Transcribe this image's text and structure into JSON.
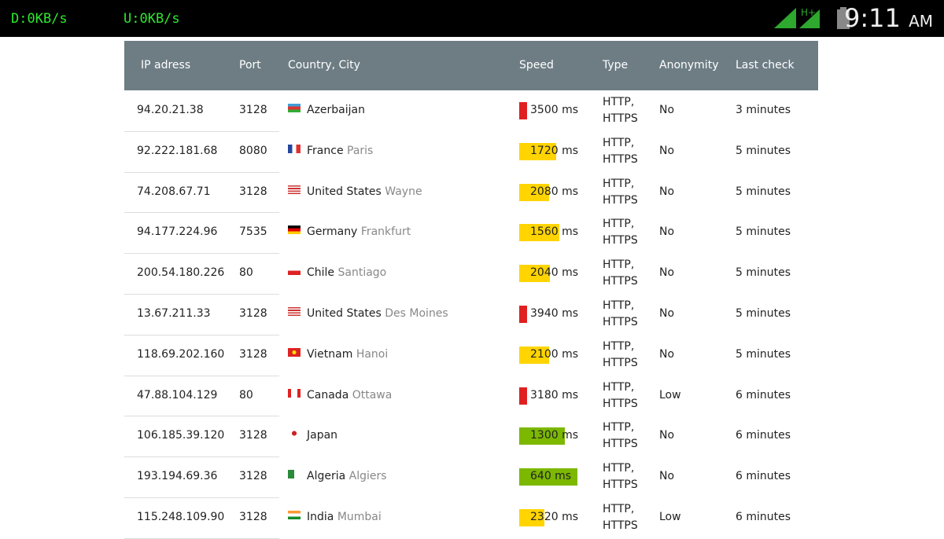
{
  "status_bar": {
    "download": "D:0KB/s",
    "upload": "U:0KB/s",
    "time": "9:11",
    "ampm": "AM"
  },
  "table": {
    "headers": [
      "IP adress",
      "Port",
      "Country, City",
      "Speed",
      "Type",
      "Anonymity",
      "Last check"
    ],
    "rows": [
      {
        "ip": "94.20.21.38",
        "port": 3128,
        "country": "Azerbaijan",
        "speed": {
          "value": 3500,
          "label": "3500 ms"
        },
        "type": "HTTP, HTTPS",
        "anonymity": "No",
        "last_check": "3 minutes"
      },
      {
        "ip": "92.222.181.68",
        "port": 8080,
        "country": "France",
        "city": "Paris",
        "speed": {
          "value": 1720,
          "label": "1720 ms"
        },
        "type": "HTTP, HTTPS",
        "anonymity": "No",
        "last_check": "5 minutes"
      },
      {
        "ip": "74.208.67.71",
        "port": 3128,
        "country": "United States",
        "city": "Wayne",
        "speed": {
          "value": 2080,
          "label": "2080 ms"
        },
        "type": "HTTP, HTTPS",
        "anonymity": "No",
        "last_check": "5 minutes"
      },
      {
        "ip": "94.177.224.96",
        "port": 7535,
        "country": "Germany",
        "city": "Frankfurt",
        "speed": {
          "value": 1560,
          "label": "1560 ms"
        },
        "type": "HTTP, HTTPS",
        "anonymity": "No",
        "last_check": "5 minutes"
      },
      {
        "ip": "200.54.180.226",
        "port": 80,
        "country": "Chile",
        "city": "Santiago",
        "speed": {
          "value": 2040,
          "label": "2040 ms"
        },
        "type": "HTTP, HTTPS",
        "anonymity": "No",
        "last_check": "5 minutes"
      },
      {
        "ip": "13.67.211.33",
        "port": 3128,
        "country": "United States",
        "city": "Des Moines",
        "speed": {
          "value": 3940,
          "label": "3940 ms"
        },
        "type": "HTTP, HTTPS",
        "anonymity": "No",
        "last_check": "5 minutes"
      },
      {
        "ip": "118.69.202.160",
        "port": 3128,
        "country": "Vietnam",
        "city": "Hanoi",
        "speed": {
          "value": 2100,
          "label": "2100 ms"
        },
        "type": "HTTP, HTTPS",
        "anonymity": "No",
        "last_check": "5 minutes"
      },
      {
        "ip": "47.88.104.129",
        "port": 80,
        "country": "Canada",
        "city": "Ottawa",
        "speed": {
          "value": 3180,
          "label": "3180 ms"
        },
        "type": "HTTP, HTTPS",
        "anonymity": "Low",
        "last_check": "6 minutes"
      },
      {
        "ip": "106.185.39.120",
        "port": 3128,
        "country": "Japan",
        "speed": {
          "value": 1300,
          "label": "1300 ms"
        },
        "type": "HTTP, HTTPS",
        "anonymity": "No",
        "last_check": "6 minutes"
      },
      {
        "ip": "193.194.69.36",
        "port": 3128,
        "country": "Algeria",
        "city": "Algiers",
        "speed": {
          "value": 640,
          "label": "640 ms"
        },
        "type": "HTTP, HTTPS",
        "anonymity": "No",
        "last_check": "6 minutes"
      },
      {
        "ip": "115.248.109.90",
        "port": 3128,
        "country": "India",
        "city": "Mumbai",
        "speed": {
          "value": 2320,
          "label": "2320 ms"
        },
        "type": "HTTP, HTTPS",
        "anonymity": "Low",
        "last_check": "6 minutes"
      }
    ]
  }
}
